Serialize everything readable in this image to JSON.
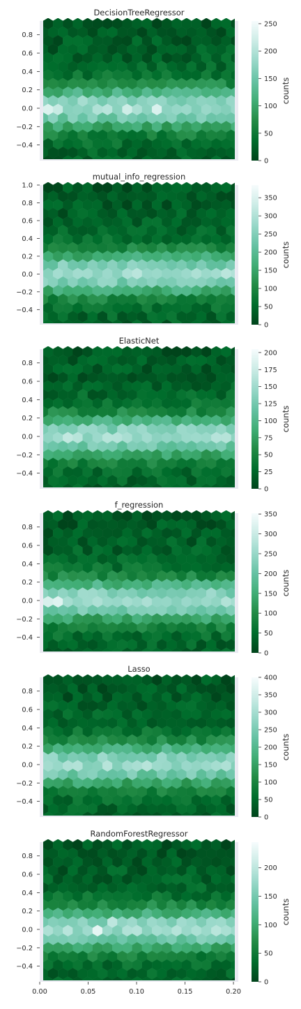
{
  "colors": {
    "axes_background": "#eaeaf2",
    "colormap": [
      "#00441b",
      "#006d2c",
      "#238b45",
      "#41ae76",
      "#66c2a4",
      "#99d8c9",
      "#ccece6",
      "#f7fcfd"
    ]
  },
  "shared_x_ticks": [
    "0.00",
    "0.05",
    "0.10",
    "0.15",
    "0.20"
  ],
  "chart_data": [
    {
      "type": "heatmap",
      "subtype": "hexbin",
      "title": "DecisionTreeRegressor",
      "xlim": [
        0.0,
        0.205
      ],
      "ylim": [
        -0.57,
        0.95
      ],
      "y_ticks": [
        "0.8",
        "0.6",
        "0.4",
        "0.2",
        "0.0",
        "−0.2",
        "−0.4"
      ],
      "y_tick_values": [
        0.8,
        0.6,
        0.4,
        0.2,
        0.0,
        -0.2,
        -0.4
      ],
      "colorbar": {
        "label": "counts",
        "max": 255,
        "ticks": [
          "0",
          "50",
          "100",
          "150",
          "200",
          "250"
        ],
        "tick_values": [
          0,
          50,
          100,
          150,
          200,
          250
        ]
      },
      "hotspots": [
        [
          0.01,
          0.0,
          250
        ],
        [
          0.02,
          0.0,
          230
        ],
        [
          0.045,
          0.04,
          250
        ],
        [
          0.075,
          0.0,
          235
        ],
        [
          0.09,
          0.0,
          230
        ],
        [
          0.12,
          0.0,
          245
        ],
        [
          0.15,
          0.07,
          160
        ],
        [
          0.185,
          -0.02,
          140
        ]
      ]
    },
    {
      "type": "heatmap",
      "subtype": "hexbin",
      "title": "mutual_info_regression",
      "xlim": [
        0.0,
        0.205
      ],
      "ylim": [
        -0.57,
        1.0
      ],
      "y_ticks": [
        "1.0",
        "0.8",
        "0.6",
        "0.4",
        "0.2",
        "0.0",
        "−0.2",
        "−0.4"
      ],
      "y_tick_values": [
        1.0,
        0.8,
        0.6,
        0.4,
        0.2,
        0.0,
        -0.2,
        -0.4
      ],
      "colorbar": {
        "label": "counts",
        "max": 385,
        "ticks": [
          "0",
          "50",
          "100",
          "150",
          "200",
          "250",
          "300",
          "350"
        ],
        "tick_values": [
          0,
          50,
          100,
          150,
          200,
          250,
          300,
          350
        ]
      },
      "hotspots": [
        [
          0.125,
          0.0,
          380
        ],
        [
          0.11,
          0.0,
          250
        ],
        [
          0.05,
          0.0,
          230
        ],
        [
          0.178,
          0.0,
          250
        ],
        [
          0.01,
          0.0,
          180
        ],
        [
          0.08,
          0.05,
          170
        ]
      ]
    },
    {
      "type": "heatmap",
      "subtype": "hexbin",
      "title": "ElasticNet",
      "xlim": [
        0.0,
        0.205
      ],
      "ylim": [
        -0.57,
        0.95
      ],
      "y_ticks": [
        "0.8",
        "0.6",
        "0.4",
        "0.2",
        "0.0",
        "−0.2",
        "−0.4"
      ],
      "y_tick_values": [
        0.8,
        0.6,
        0.4,
        0.2,
        0.0,
        -0.2,
        -0.4
      ],
      "colorbar": {
        "label": "counts",
        "max": 205,
        "ticks": [
          "0",
          "25",
          "50",
          "75",
          "100",
          "125",
          "150",
          "175",
          "200"
        ],
        "tick_values": [
          0,
          25,
          50,
          75,
          100,
          125,
          150,
          175,
          200
        ]
      },
      "hotspots": [
        [
          0.03,
          0.0,
          180
        ],
        [
          0.045,
          0.0,
          200
        ],
        [
          0.08,
          0.0,
          170
        ],
        [
          0.095,
          0.0,
          200
        ],
        [
          0.125,
          0.0,
          195
        ],
        [
          0.135,
          -0.04,
          190
        ],
        [
          0.165,
          0.0,
          165
        ],
        [
          0.185,
          0.0,
          150
        ]
      ]
    },
    {
      "type": "heatmap",
      "subtype": "hexbin",
      "title": "f_regression",
      "xlim": [
        0.0,
        0.205
      ],
      "ylim": [
        -0.57,
        0.95
      ],
      "y_ticks": [
        "0.8",
        "0.6",
        "0.4",
        "0.2",
        "0.0",
        "−0.2",
        "−0.4"
      ],
      "y_tick_values": [
        0.8,
        0.6,
        0.4,
        0.2,
        0.0,
        -0.2,
        -0.4
      ],
      "colorbar": {
        "label": "counts",
        "max": 352,
        "ticks": [
          "0",
          "50",
          "100",
          "150",
          "200",
          "250",
          "300",
          "350"
        ],
        "tick_values": [
          0,
          50,
          100,
          150,
          200,
          250,
          300,
          350
        ]
      },
      "hotspots": [
        [
          0.01,
          0.0,
          340
        ],
        [
          0.02,
          0.0,
          345
        ],
        [
          0.03,
          0.0,
          270
        ],
        [
          0.045,
          0.08,
          260
        ],
        [
          0.08,
          0.0,
          260
        ],
        [
          0.09,
          0.0,
          240
        ],
        [
          0.15,
          0.0,
          240
        ],
        [
          0.17,
          0.0,
          255
        ],
        [
          0.19,
          0.0,
          220
        ]
      ]
    },
    {
      "type": "heatmap",
      "subtype": "hexbin",
      "title": "Lasso",
      "xlim": [
        0.0,
        0.205
      ],
      "ylim": [
        -0.57,
        0.95
      ],
      "y_ticks": [
        "0.8",
        "0.6",
        "0.4",
        "0.2",
        "0.0",
        "−0.2",
        "−0.4"
      ],
      "y_tick_values": [
        0.8,
        0.6,
        0.4,
        0.2,
        0.0,
        -0.2,
        -0.4
      ],
      "colorbar": {
        "label": "counts",
        "max": 400,
        "ticks": [
          "0",
          "50",
          "100",
          "150",
          "200",
          "250",
          "300",
          "350",
          "400"
        ],
        "tick_values": [
          0,
          50,
          100,
          150,
          200,
          250,
          300,
          350,
          400
        ]
      },
      "hotspots": [
        [
          0.01,
          0.0,
          280
        ],
        [
          0.03,
          0.0,
          320
        ],
        [
          0.04,
          0.0,
          330
        ],
        [
          0.045,
          0.08,
          250
        ],
        [
          0.065,
          0.0,
          300
        ],
        [
          0.075,
          0.0,
          270
        ],
        [
          0.158,
          0.0,
          390
        ],
        [
          0.12,
          0.0,
          200
        ]
      ]
    },
    {
      "type": "heatmap",
      "subtype": "hexbin",
      "title": "RandomForestRegressor",
      "xlim": [
        0.0,
        0.205
      ],
      "ylim": [
        -0.57,
        0.95
      ],
      "y_ticks": [
        "0.8",
        "0.6",
        "0.4",
        "0.2",
        "0.0",
        "−0.2",
        "−0.4"
      ],
      "y_tick_values": [
        0.8,
        0.6,
        0.4,
        0.2,
        0.0,
        -0.2,
        -0.4
      ],
      "x_ticks": [
        "0.00",
        "0.05",
        "0.10",
        "0.15",
        "0.20"
      ],
      "x_tick_values": [
        0.0,
        0.05,
        0.1,
        0.15,
        0.2
      ],
      "colorbar": {
        "label": "counts",
        "max": 245,
        "ticks": [
          "0",
          "50",
          "100",
          "150",
          "200"
        ],
        "tick_values": [
          0,
          50,
          100,
          150,
          200
        ]
      },
      "hotspots": [
        [
          0.025,
          -0.05,
          210
        ],
        [
          0.06,
          0.0,
          240
        ],
        [
          0.075,
          0.08,
          200
        ],
        [
          0.09,
          0.0,
          200
        ],
        [
          0.135,
          0.0,
          205
        ],
        [
          0.15,
          0.07,
          180
        ],
        [
          0.17,
          0.0,
          185
        ]
      ]
    }
  ]
}
